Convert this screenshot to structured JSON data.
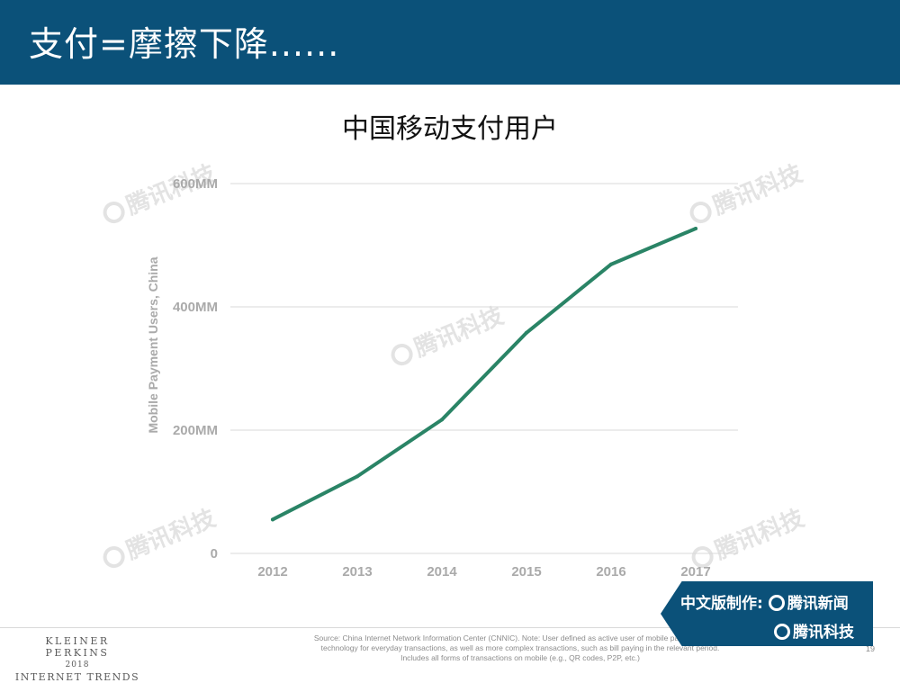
{
  "header": {
    "title": "支付=摩擦下降......"
  },
  "watermark_text": "腾讯科技",
  "badge": {
    "prefix": "中文版制作:",
    "news": "腾讯新闻",
    "tech": "腾讯科技"
  },
  "footer": {
    "brand_line1": "KLEINER PERKINS",
    "brand_line2": "2018",
    "brand_line3": "INTERNET TRENDS",
    "source": "Source: China Internet Network Information Center (CNNIC). Note: User defined as active user of mobile passed payment technology for everyday transactions, as well as more complex transactions, such as bill paying in the relevant period. Includes all forms of transactions on mobile (e.g., QR codes, P2P, etc.)",
    "page_number": "19"
  },
  "colors": {
    "header_bg": "#0b5179",
    "line": "#2a8466",
    "grid": "#d9d9d9",
    "tick_label": "#aaaaaa"
  },
  "chart_data": {
    "type": "line",
    "title": "中国移动支付用户",
    "xlabel": "",
    "ylabel": "Mobile Payment Users, China",
    "categories": [
      "2012",
      "2013",
      "2014",
      "2015",
      "2016",
      "2017"
    ],
    "series": [
      {
        "values": [
          55,
          125,
          217,
          358,
          469,
          527
        ]
      }
    ],
    "ylim": [
      0,
      600
    ],
    "yticks": [
      0,
      200,
      400,
      600
    ],
    "ytick_labels": [
      "0",
      "200MM",
      "400MM",
      "600MM"
    ],
    "grid": true,
    "legend": "none"
  }
}
